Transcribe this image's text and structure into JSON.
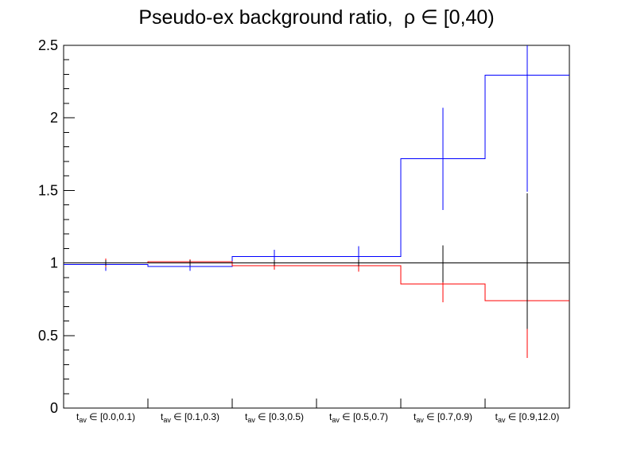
{
  "chart_data": {
    "type": "step-histogram-ratio",
    "title": "Pseudo-ex background ratio,  ρ ∈ [0,40)",
    "grid": false,
    "legend": "none",
    "x_axis": {
      "label_var": "t",
      "label_sub": "av",
      "label_symbol": "∈",
      "bin_ranges": [
        "[0.0,0.1)",
        "[0.1,0.3)",
        "[0.3,0.5)",
        "[0.5,0.7)",
        "[0.7,0.9)",
        "[0.9,12.0)"
      ]
    },
    "y_axis": {
      "min": 0,
      "max": 2.5,
      "major_ticks": [
        0,
        0.5,
        1,
        1.5,
        2,
        2.5
      ],
      "major_tick_labels": [
        "0",
        "0.5",
        "1",
        "1.5",
        "2",
        "2.5"
      ],
      "minor_tick_step": 0.1
    },
    "reference_line": {
      "name": "reference-ratio",
      "color": "#000000",
      "value": 1.0,
      "err_lo": [
        0.98,
        0.982,
        0.98,
        0.978,
        0.865,
        0.545
      ],
      "err_hi": [
        1.02,
        1.02,
        1.02,
        1.022,
        1.12,
        1.48
      ]
    },
    "series": [
      {
        "name": "blue-ratio",
        "color": "#0000ff",
        "values": [
          0.99,
          0.975,
          1.045,
          1.045,
          1.72,
          2.295
        ],
        "err_lo": [
          0.945,
          0.945,
          0.975,
          0.955,
          1.365,
          1.49
        ],
        "err_hi": [
          1.01,
          1.002,
          1.09,
          1.115,
          2.07,
          2.62
        ]
      },
      {
        "name": "red-ratio",
        "color": "#ff0000",
        "values": [
          1.0,
          1.008,
          0.982,
          0.982,
          0.855,
          0.74
        ],
        "err_lo": [
          0.97,
          0.99,
          0.955,
          0.94,
          0.73,
          0.345
        ],
        "err_hi": [
          1.03,
          1.025,
          1.008,
          1.025,
          0.98,
          1.135
        ]
      }
    ]
  }
}
